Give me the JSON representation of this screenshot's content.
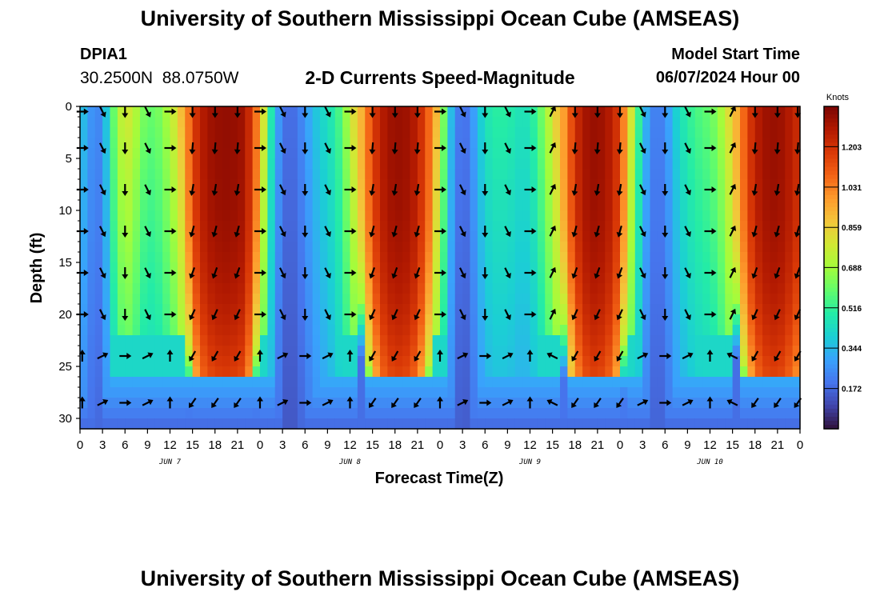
{
  "header": {
    "title": "University of Southern Mississippi Ocean Cube (AMSEAS)",
    "station": "DPIA1",
    "coords": "30.2500N  88.0750W",
    "subtitle": "2-D Currents Speed-Magnitude",
    "model_start_label": "Model Start Time",
    "model_start_value": "06/07/2024 Hour 00"
  },
  "footer": {
    "title": "University of Southern Mississippi Ocean Cube (AMSEAS)"
  },
  "chart_data": {
    "type": "heatmap",
    "title": "2-D Currents Speed-Magnitude",
    "xlabel": "Forecast Time(Z)",
    "ylabel": "Depth (ft)",
    "x_range_hours": [
      0,
      96
    ],
    "y_range_ft": [
      0,
      31
    ],
    "x_tick_labels": [
      "0",
      "3",
      "6",
      "9",
      "12",
      "15",
      "18",
      "21",
      "0",
      "3",
      "6",
      "9",
      "12",
      "15",
      "18",
      "21",
      "0",
      "3",
      "6",
      "9",
      "12",
      "15",
      "18",
      "21",
      "0",
      "3",
      "6",
      "9",
      "12",
      "15",
      "18",
      "21",
      "0"
    ],
    "y_ticks": [
      0,
      5,
      10,
      15,
      20,
      25,
      30
    ],
    "day_labels": [
      {
        "label": "JUN 7",
        "hour": 12
      },
      {
        "label": "JUN 8",
        "hour": 36
      },
      {
        "label": "JUN 9",
        "hour": 60
      },
      {
        "label": "JUN 10",
        "hour": 84
      }
    ],
    "colorbar": {
      "unit_label": "Knots",
      "ticks": [
        "1.203",
        "1.031",
        "0.859",
        "0.688",
        "0.516",
        "0.344",
        "0.172"
      ],
      "tick_values": [
        1.203,
        1.031,
        0.859,
        0.688,
        0.516,
        0.344,
        0.172
      ],
      "range": [
        0,
        1.375
      ],
      "colors": [
        "#30123b",
        "#4145ab",
        "#4675ed",
        "#39a2fc",
        "#1bcfd4",
        "#24eca6",
        "#61fc6c",
        "#a4fc3b",
        "#d1e834",
        "#f3c63a",
        "#fe9b2d",
        "#f36315",
        "#d93806",
        "#b11901",
        "#7a0402"
      ]
    },
    "time_profile_knots": {
      "hours": [
        0,
        1,
        2,
        3,
        4,
        5,
        6,
        7,
        8,
        9,
        10,
        11,
        12,
        13,
        14,
        15,
        16,
        17,
        18,
        19,
        20,
        21,
        22,
        23,
        24,
        25,
        26,
        27,
        28,
        29,
        30,
        31,
        32,
        33,
        34,
        35,
        36,
        37,
        38,
        39,
        40,
        41,
        42,
        43,
        44,
        45,
        46,
        47,
        48,
        49,
        50,
        51,
        52,
        53,
        54,
        55,
        56,
        57,
        58,
        59,
        60,
        61,
        62,
        63,
        64,
        65,
        66,
        67,
        68,
        69,
        70,
        71,
        72,
        73,
        74,
        75,
        76,
        77,
        78,
        79,
        80,
        81,
        82,
        83,
        84,
        85,
        86,
        87,
        88,
        89,
        90,
        91,
        92,
        93,
        94,
        95,
        96
      ],
      "surface": [
        0.35,
        0.25,
        0.18,
        0.2,
        0.45,
        0.65,
        0.75,
        0.72,
        0.6,
        0.55,
        0.55,
        0.6,
        0.68,
        0.78,
        0.95,
        1.15,
        1.25,
        1.3,
        1.32,
        1.33,
        1.33,
        1.32,
        1.3,
        1.15,
        0.95,
        0.55,
        0.3,
        0.15,
        0.12,
        0.15,
        0.22,
        0.3,
        0.35,
        0.4,
        0.45,
        0.55,
        0.7,
        0.85,
        1.0,
        1.15,
        1.25,
        1.3,
        1.32,
        1.32,
        1.3,
        1.25,
        1.15,
        1.0,
        0.75,
        0.4,
        0.2,
        0.12,
        0.18,
        0.3,
        0.4,
        0.45,
        0.45,
        0.45,
        0.42,
        0.4,
        0.42,
        0.5,
        0.62,
        0.75,
        0.9,
        1.05,
        1.2,
        1.28,
        1.32,
        1.32,
        1.3,
        1.25,
        1.15,
        0.9,
        0.6,
        0.35,
        0.2,
        0.15,
        0.2,
        0.3,
        0.4,
        0.45,
        0.5,
        0.52,
        0.55,
        0.6,
        0.7,
        0.85,
        1.0,
        1.15,
        1.25,
        1.3,
        1.32,
        1.32,
        1.3,
        1.25,
        1.2
      ]
    }
  }
}
